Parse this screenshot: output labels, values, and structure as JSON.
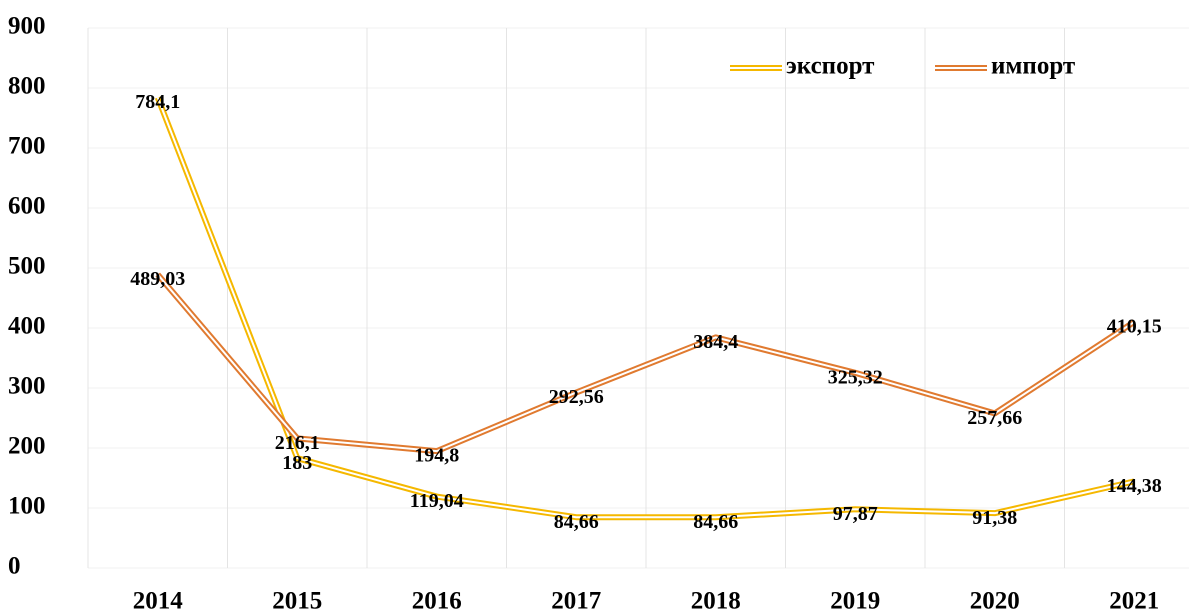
{
  "chart_data": {
    "type": "line",
    "categories": [
      "2014",
      "2015",
      "2016",
      "2017",
      "2018",
      "2019",
      "2020",
      "2021"
    ],
    "series": [
      {
        "name": "экспорт",
        "color": "#f5b800",
        "values": [
          784.1,
          183,
          119.04,
          84.66,
          84.66,
          97.87,
          91.38,
          144.38
        ],
        "value_labels": [
          "784,1",
          "183",
          "119,04",
          "84,66",
          "84,66",
          "97,87",
          "91,38",
          "144,38"
        ]
      },
      {
        "name": "импорт",
        "color": "#e07a30",
        "values": [
          489.03,
          216.1,
          194.8,
          292.56,
          384.4,
          325.32,
          257.66,
          410.15
        ],
        "value_labels": [
          "489,03",
          "216,1",
          "194,8",
          "292,56",
          "384,4",
          "325,32",
          "257,66",
          "410,15"
        ]
      }
    ],
    "ylim": [
      0,
      900
    ],
    "yticks": [
      0,
      100,
      200,
      300,
      400,
      500,
      600,
      700,
      800,
      900
    ],
    "grid": true,
    "legend": "top-right"
  }
}
